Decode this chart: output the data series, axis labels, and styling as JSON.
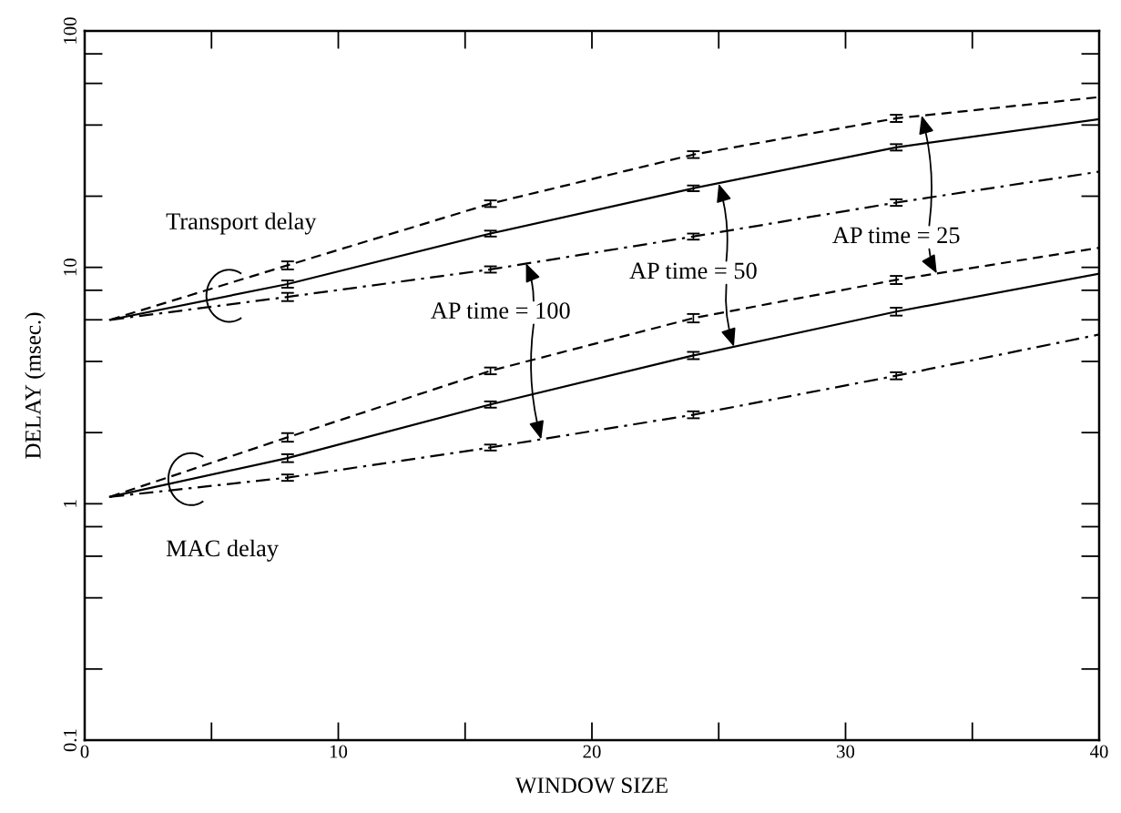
{
  "chart_data": {
    "type": "line",
    "xlabel": "WINDOW SIZE",
    "ylabel": "DELAY (msec.)",
    "log": "y",
    "xlim": [
      0,
      40
    ],
    "ylim": [
      0.1,
      100
    ],
    "xticks": [
      0,
      10,
      20,
      30,
      40
    ],
    "yticks": [
      0.1,
      1,
      10,
      100
    ],
    "grid": false,
    "x": [
      1,
      8,
      16,
      24,
      32,
      40
    ],
    "series": [
      {
        "color": "#000000",
        "line_style": "dashed",
        "values": [
          6,
          10.2,
          18.6,
          30,
          42.7,
          52.5
        ],
        "errors": [
          null,
          0.4,
          0.6,
          1,
          1.5,
          null
        ]
      },
      {
        "color": "#000000",
        "line_style": "solid",
        "values": [
          6,
          8.5,
          13.9,
          21.6,
          32.2,
          42.4
        ],
        "errors": [
          null,
          0.3,
          0.4,
          0.6,
          1,
          null
        ]
      },
      {
        "color": "#000000",
        "line_style": "dashdot",
        "values": [
          6,
          7.5,
          9.8,
          13.5,
          18.8,
          25.4
        ],
        "errors": [
          null,
          0.3,
          0.3,
          0.4,
          0.6,
          null
        ]
      },
      {
        "color": "#000000",
        "line_style": "dashed",
        "values": [
          1.07,
          1.91,
          3.65,
          6.1,
          8.85,
          12.1
        ],
        "errors": [
          null,
          0.08,
          0.12,
          0.25,
          0.35,
          null
        ]
      },
      {
        "color": "#000000",
        "line_style": "solid",
        "values": [
          1.07,
          1.56,
          2.63,
          4.24,
          6.5,
          9.4
        ],
        "errors": [
          null,
          0.06,
          0.08,
          0.15,
          0.25,
          null
        ]
      },
      {
        "color": "#000000",
        "line_style": "dashdot",
        "values": [
          1.07,
          1.29,
          1.73,
          2.38,
          3.48,
          5.2
        ],
        "errors": [
          null,
          0.04,
          0.05,
          0.08,
          0.12,
          null
        ]
      }
    ],
    "annotations": [
      "Transport delay",
      "MAC delay",
      {
        "text": "AP time = 100",
        "x": 17.4,
        "y": 10.4
      },
      {
        "text": "AP time = 50",
        "x": 25,
        "y": 22.6
      },
      {
        "text": "AP time = 25",
        "x": 33,
        "y": 43.9
      }
    ]
  }
}
